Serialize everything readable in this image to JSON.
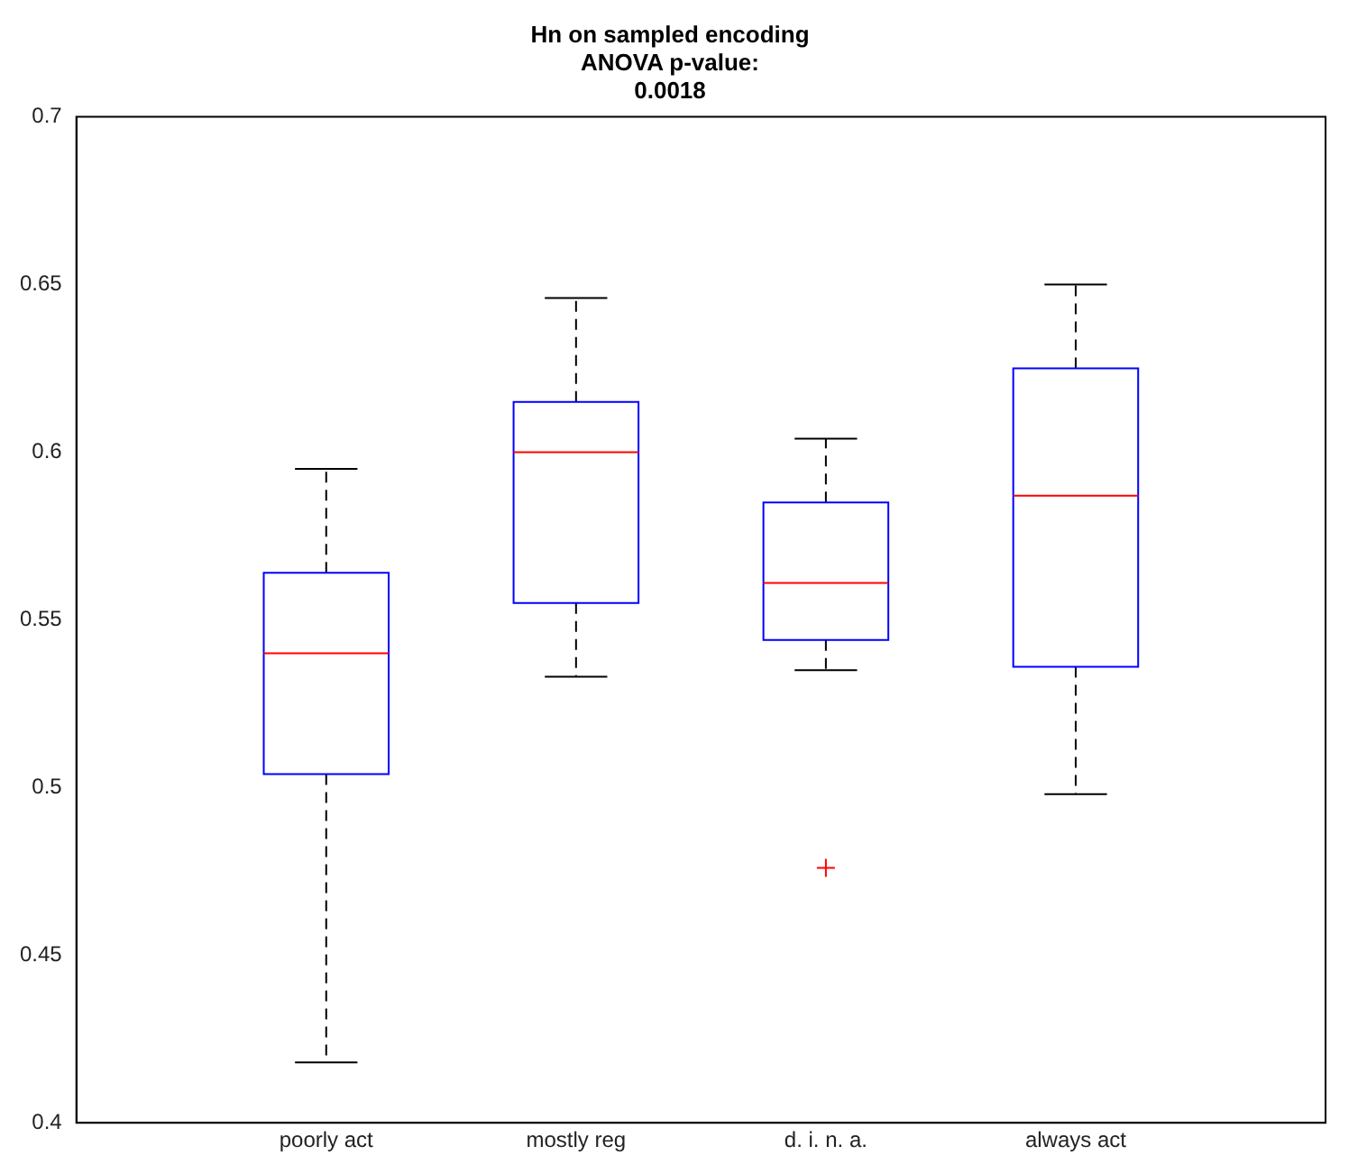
{
  "chart_data": {
    "type": "box",
    "title": "Hn on sampled encoding\nANOVA p-value:\n0.0018",
    "categories": [
      "poorly act",
      "mostly reg",
      "d. i. n. a.",
      "always act"
    ],
    "boxes": [
      {
        "low": 0.418,
        "q1": 0.504,
        "median": 0.54,
        "q3": 0.564,
        "high": 0.595
      },
      {
        "low": 0.533,
        "q1": 0.555,
        "median": 0.6,
        "q3": 0.615,
        "high": 0.646
      },
      {
        "low": 0.535,
        "q1": 0.544,
        "median": 0.561,
        "q3": 0.585,
        "high": 0.604,
        "outliers": [
          0.476
        ]
      },
      {
        "low": 0.498,
        "q1": 0.536,
        "median": 0.587,
        "q3": 0.625,
        "high": 0.65
      }
    ],
    "ylim": [
      0.4,
      0.7
    ],
    "yticks": [
      0.4,
      0.45,
      0.5,
      0.55,
      0.6,
      0.65,
      0.7
    ],
    "grid": false,
    "legend": false
  }
}
